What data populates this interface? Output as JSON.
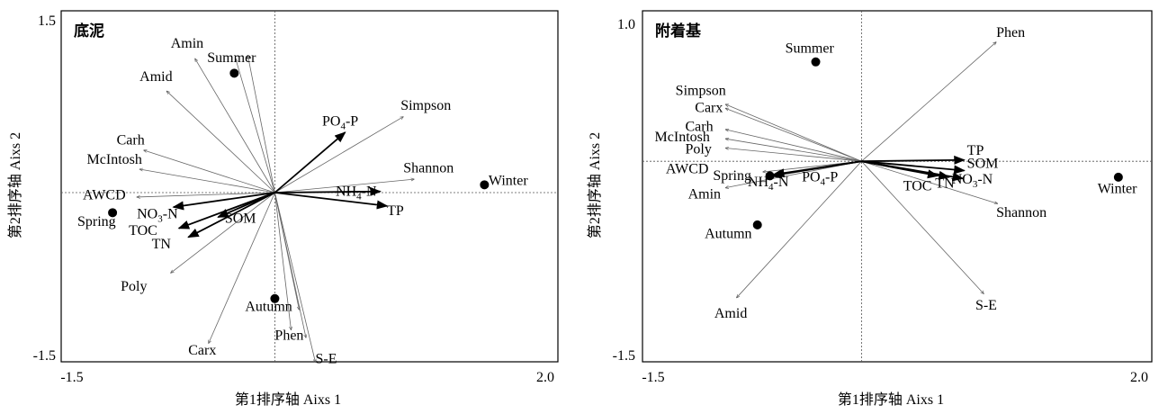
{
  "chart_data": [
    {
      "type": "scatter",
      "title": "底泥",
      "xlabel": "第1排序轴 Aixs 1",
      "ylabel": "第2排序轴 Aixs 2",
      "xlim": [
        -1.5,
        2.0
      ],
      "ylim": [
        -1.5,
        1.5
      ],
      "x_tick_labels": [
        "-1.5",
        "2.0"
      ],
      "y_tick_labels": [
        "1.5",
        "-1.5"
      ],
      "origin": [
        0,
        0
      ],
      "env_vectors": [
        {
          "name": "PO4-P",
          "sub": "4",
          "pre": "PO",
          "post": "-P",
          "x": 0.52,
          "y": 0.54,
          "lx": 0.35,
          "ly": 0.6,
          "anchor": "start"
        },
        {
          "name": "NH4-N",
          "sub": "4",
          "pre": "NH",
          "post": "-N",
          "x": 0.78,
          "y": 0.01,
          "lx": 0.45,
          "ly": -0.03,
          "anchor": "start"
        },
        {
          "name": "TP",
          "x": 0.83,
          "y": -0.12,
          "lx": 0.83,
          "ly": -0.2,
          "anchor": "start"
        },
        {
          "name": "NO3-N",
          "sub": "3",
          "pre": "NO",
          "post": "-N",
          "x": -0.75,
          "y": -0.13,
          "lx": -1.02,
          "ly": -0.23,
          "anchor": "start"
        },
        {
          "name": "TOC",
          "x": -0.71,
          "y": -0.32,
          "lx": -1.08,
          "ly": -0.38,
          "anchor": "start"
        },
        {
          "name": "TN",
          "x": -0.64,
          "y": -0.4,
          "lx": -0.91,
          "ly": -0.5,
          "anchor": "start"
        },
        {
          "name": "SOM",
          "x": -0.42,
          "y": -0.22,
          "lx": -0.37,
          "ly": -0.27,
          "anchor": "start"
        }
      ],
      "species_vectors": [
        {
          "name": "Amin",
          "x": -0.59,
          "y": 1.2,
          "lx": -0.77,
          "ly": 1.3,
          "anchor": "start"
        },
        {
          "name": "Amid",
          "x": -0.8,
          "y": 0.91,
          "lx": -1.0,
          "ly": 1.0,
          "anchor": "start"
        },
        {
          "name": "Simpson",
          "x": 0.95,
          "y": 0.68,
          "lx": 0.93,
          "ly": 0.74,
          "anchor": "start"
        },
        {
          "name": "Carh",
          "x": -0.97,
          "y": 0.38,
          "lx": -1.17,
          "ly": 0.43,
          "anchor": "start"
        },
        {
          "name": "McIntosh",
          "x": -1.0,
          "y": 0.21,
          "lx": -1.39,
          "ly": 0.26,
          "anchor": "start"
        },
        {
          "name": "Shannon",
          "x": 1.03,
          "y": 0.12,
          "lx": 0.95,
          "ly": 0.18,
          "anchor": "start"
        },
        {
          "name": "AWCD",
          "x": -1.02,
          "y": -0.04,
          "lx": -1.42,
          "ly": -0.06,
          "anchor": "start"
        },
        {
          "name": "Poly",
          "x": -0.77,
          "y": -0.72,
          "lx": -1.14,
          "ly": -0.88,
          "anchor": "start"
        },
        {
          "name": "Carx",
          "x": -0.49,
          "y": -1.35,
          "lx": -0.64,
          "ly": -1.45,
          "anchor": "start"
        },
        {
          "name": "Autumn-line",
          "x": 0.0,
          "y": 0.0,
          "hidden": true
        },
        {
          "name": "Phen",
          "x": 0.12,
          "y": -1.23,
          "lx": 0.0,
          "ly": -1.32,
          "anchor": "start"
        },
        {
          "name": "S-E",
          "x": 0.3,
          "y": -1.52,
          "lx": 0.3,
          "ly": -1.53,
          "anchor": "start"
        }
      ],
      "extra_rays": [
        {
          "x": -0.2,
          "y": 1.23
        },
        {
          "x": -0.29,
          "y": 1.2
        },
        {
          "x": 0.18,
          "y": -1.05
        },
        {
          "x": 0.23,
          "y": -1.3
        }
      ],
      "samples": [
        {
          "name": "Summer",
          "x": -0.3,
          "y": 1.07,
          "lx": -0.5,
          "ly": 1.17,
          "anchor": "start"
        },
        {
          "name": "Winter",
          "x": 1.55,
          "y": 0.07,
          "lx": 1.58,
          "ly": 0.07,
          "anchor": "start"
        },
        {
          "name": "Spring",
          "x": -1.2,
          "y": -0.18,
          "lx": -1.46,
          "ly": -0.3,
          "anchor": "start"
        },
        {
          "name": "Autumn",
          "x": 0.0,
          "y": -0.95,
          "lx": -0.22,
          "ly": -1.06,
          "anchor": "start"
        }
      ]
    },
    {
      "type": "scatter",
      "title": "附着基",
      "xlabel": "第1排序轴 Aixs 1",
      "ylabel": "第2排序轴 Aixs 2",
      "xlim": [
        -1.5,
        2.0
      ],
      "ylim": [
        -1.5,
        1.0
      ],
      "x_tick_labels": [
        "-1.5",
        "2.0"
      ],
      "y_tick_labels": [
        "1.0",
        "-1.5"
      ],
      "origin": [
        0,
        0
      ],
      "env_vectors": [
        {
          "name": "TP",
          "x": 0.74,
          "y": 0.01,
          "lx": 0.76,
          "ly": 0.05,
          "anchor": "start"
        },
        {
          "name": "SOM",
          "x": 0.74,
          "y": -0.07,
          "lx": 0.76,
          "ly": -0.05,
          "anchor": "start"
        },
        {
          "name": "NO3-N",
          "sub": "3",
          "pre": "NO",
          "post": "-N",
          "x": 0.73,
          "y": -0.13,
          "lx": 0.65,
          "ly": -0.17,
          "anchor": "start"
        },
        {
          "name": "TN",
          "x": 0.63,
          "y": -0.12,
          "lx": 0.53,
          "ly": -0.2,
          "anchor": "start"
        },
        {
          "name": "TOC",
          "x": 0.55,
          "y": -0.11,
          "lx": 0.3,
          "ly": -0.22,
          "anchor": "start"
        },
        {
          "name": "NH4-N",
          "sub": "4",
          "pre": "NH",
          "post": "-N",
          "x": -0.65,
          "y": -0.11,
          "lx": -0.82,
          "ly": -0.19,
          "anchor": "start"
        },
        {
          "name": "PO4-P",
          "sub": "4",
          "pre": "PO",
          "post": "-P",
          "x": -0.63,
          "y": -0.1,
          "lx": -0.43,
          "ly": -0.15,
          "anchor": "start"
        }
      ],
      "species_vectors": [
        {
          "name": "Phen",
          "x": 0.97,
          "y": 0.9,
          "lx": 0.97,
          "ly": 0.94,
          "anchor": "start"
        },
        {
          "name": "Simpson",
          "x": -0.98,
          "y": 0.43,
          "lx": -1.34,
          "ly": 0.5,
          "anchor": "start"
        },
        {
          "name": "Carx",
          "x": -0.98,
          "y": 0.4,
          "lx": -1.2,
          "ly": 0.37,
          "anchor": "start"
        },
        {
          "name": "Carh",
          "x": -0.98,
          "y": 0.24,
          "lx": -1.27,
          "ly": 0.23,
          "anchor": "start"
        },
        {
          "name": "McIntosh",
          "x": -0.98,
          "y": 0.17,
          "lx": -1.49,
          "ly": 0.15,
          "anchor": "start"
        },
        {
          "name": "Poly",
          "x": -0.98,
          "y": 0.1,
          "lx": -1.27,
          "ly": 0.06,
          "anchor": "start"
        },
        {
          "name": "Amin",
          "x": -0.98,
          "y": -0.2,
          "lx": -1.25,
          "ly": -0.28,
          "anchor": "start"
        },
        {
          "name": "Shannon",
          "x": 0.98,
          "y": -0.32,
          "lx": 0.97,
          "ly": -0.42,
          "anchor": "start"
        },
        {
          "name": "Amid",
          "x": -0.9,
          "y": -1.03,
          "lx": -1.06,
          "ly": -1.18,
          "anchor": "start"
        },
        {
          "name": "S-E",
          "x": 0.88,
          "y": -1.0,
          "lx": 0.82,
          "ly": -1.12,
          "anchor": "start"
        },
        {
          "name": "AWCD",
          "x": -0.71,
          "y": -0.08,
          "lx": -1.41,
          "ly": -0.09,
          "anchor": "start"
        }
      ],
      "extra_rays": [],
      "samples": [
        {
          "name": "Summer",
          "x": -0.33,
          "y": 0.75,
          "lx": -0.55,
          "ly": 0.82,
          "anchor": "start"
        },
        {
          "name": "Winter",
          "x": 1.85,
          "y": -0.12,
          "lx": 1.7,
          "ly": -0.24,
          "anchor": "start"
        },
        {
          "name": "Spring",
          "x": -0.66,
          "y": -0.11,
          "lx": -1.07,
          "ly": -0.14,
          "anchor": "start"
        },
        {
          "name": "Autumn",
          "x": -0.75,
          "y": -0.48,
          "lx": -1.13,
          "ly": -0.58,
          "anchor": "start"
        }
      ]
    }
  ]
}
